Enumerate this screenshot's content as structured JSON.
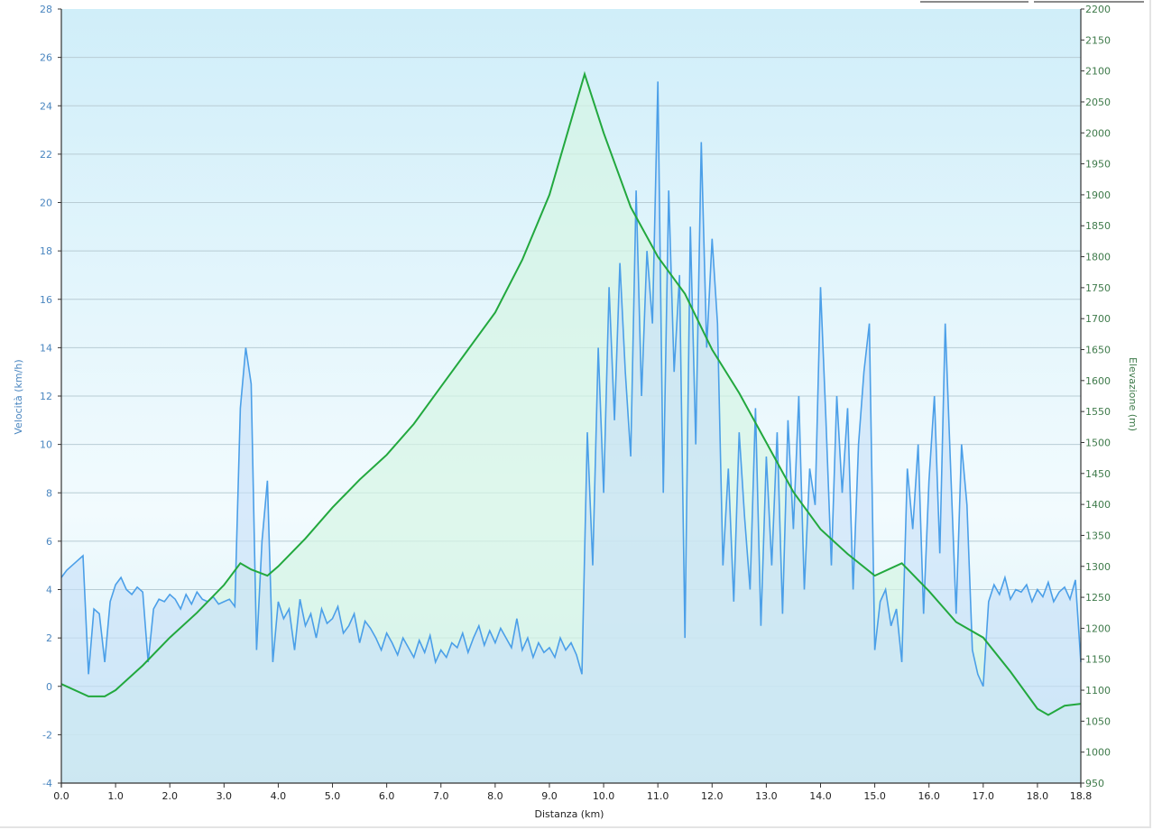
{
  "chart_data": {
    "type": "line",
    "title": "",
    "xlabel": "Distanza  (km)",
    "ylabel_left": "Velocità (km/h)",
    "ylabel_right": "Elevazione (m)",
    "xlim": [
      0,
      18.8
    ],
    "ylim_left": [
      -4,
      28
    ],
    "ylim_right": [
      950,
      2200
    ],
    "x_ticks": [
      "0.0",
      "1.0",
      "2.0",
      "3.0",
      "4.0",
      "5.0",
      "6.0",
      "7.0",
      "8.0",
      "9.0",
      "10.0",
      "11.0",
      "12.0",
      "13.0",
      "14.0",
      "15.0",
      "16.0",
      "17.0",
      "18.0",
      "18.8"
    ],
    "y_left_ticks": [
      -4,
      -2,
      0,
      2,
      4,
      6,
      8,
      10,
      12,
      14,
      16,
      18,
      20,
      22,
      24,
      26,
      28
    ],
    "y_right_ticks": [
      950,
      1000,
      1050,
      1100,
      1150,
      1200,
      1250,
      1300,
      1350,
      1400,
      1450,
      1500,
      1550,
      1600,
      1650,
      1700,
      1750,
      1800,
      1850,
      1900,
      1950,
      2000,
      2050,
      2100,
      2150,
      2200
    ],
    "grid": "horizontal",
    "colors": {
      "speed": "#4b9fe8",
      "speed_fill": "#cfe6fa",
      "elevation": "#22a83e",
      "elevation_fill": "#d6f5e4",
      "left_axis_text": "#4a86c0",
      "right_axis_text": "#3e7a4a"
    },
    "series": [
      {
        "name": "Velocità",
        "axis": "left",
        "x_step_km": 0.1,
        "values": [
          4.5,
          4.8,
          5.0,
          5.2,
          5.4,
          0.5,
          3.2,
          3.0,
          1.0,
          3.5,
          4.2,
          4.5,
          4.0,
          3.8,
          4.1,
          3.9,
          1.0,
          3.2,
          3.6,
          3.5,
          3.8,
          3.6,
          3.2,
          3.8,
          3.4,
          3.9,
          3.6,
          3.5,
          3.7,
          3.4,
          3.5,
          3.6,
          3.3,
          11.5,
          14.0,
          12.5,
          1.5,
          6.0,
          8.5,
          1.0,
          3.5,
          2.8,
          3.2,
          1.5,
          3.6,
          2.5,
          3.0,
          2.0,
          3.2,
          2.6,
          2.8,
          3.3,
          2.2,
          2.5,
          3.0,
          1.8,
          2.7,
          2.4,
          2.0,
          1.5,
          2.2,
          1.8,
          1.3,
          2.0,
          1.6,
          1.2,
          1.9,
          1.4,
          2.1,
          1.0,
          1.5,
          1.2,
          1.8,
          1.6,
          2.2,
          1.4,
          2.0,
          2.5,
          1.7,
          2.3,
          1.8,
          2.4,
          2.0,
          1.6,
          2.8,
          1.5,
          2.0,
          1.2,
          1.8,
          1.4,
          1.6,
          1.2,
          2.0,
          1.5,
          1.8,
          1.3,
          0.5,
          10.5,
          5.0,
          14.0,
          8.0,
          16.5,
          11.0,
          17.5,
          13.0,
          9.5,
          20.5,
          12.0,
          18.0,
          15.0,
          25.0,
          8.0,
          20.5,
          13.0,
          17.0,
          2.0,
          19.0,
          10.0,
          22.5,
          14.0,
          18.5,
          15.0,
          5.0,
          9.0,
          3.5,
          10.5,
          7.0,
          4.0,
          11.5,
          2.5,
          9.5,
          5.0,
          10.5,
          3.0,
          11.0,
          6.5,
          12.0,
          4.0,
          9.0,
          7.5,
          16.5,
          11.0,
          5.0,
          12.0,
          8.0,
          11.5,
          4.0,
          10.0,
          13.0,
          15.0,
          1.5,
          3.5,
          4.0,
          2.5,
          3.2,
          1.0,
          9.0,
          6.5,
          10.0,
          3.0,
          8.5,
          12.0,
          5.5,
          15.0,
          9.0,
          3.0,
          10.0,
          7.5,
          1.5,
          0.5,
          0.0,
          3.5,
          4.2,
          3.8,
          4.5,
          3.6,
          4.0,
          3.9,
          4.2,
          3.5,
          4.0,
          3.7,
          4.3,
          3.5,
          3.9,
          4.1,
          3.6,
          4.4,
          1.0
        ]
      },
      {
        "name": "Elevazione",
        "axis": "right",
        "x": [
          0,
          0.5,
          0.8,
          1.0,
          1.5,
          2.0,
          2.5,
          3.0,
          3.3,
          3.5,
          3.8,
          4.0,
          4.5,
          5.0,
          5.5,
          6.0,
          6.5,
          7.0,
          7.5,
          8.0,
          8.5,
          9.0,
          9.5,
          9.65,
          10.0,
          10.5,
          11.0,
          11.5,
          12.0,
          12.5,
          13.0,
          13.5,
          14.0,
          14.5,
          15.0,
          15.5,
          16.0,
          16.5,
          17.0,
          17.5,
          18.0,
          18.2,
          18.5,
          18.8
        ],
        "values": [
          1110,
          1090,
          1090,
          1100,
          1140,
          1185,
          1225,
          1270,
          1305,
          1295,
          1285,
          1300,
          1345,
          1395,
          1440,
          1480,
          1530,
          1590,
          1650,
          1710,
          1795,
          1900,
          2050,
          2095,
          2000,
          1880,
          1800,
          1740,
          1650,
          1580,
          1500,
          1420,
          1360,
          1320,
          1285,
          1305,
          1260,
          1210,
          1185,
          1130,
          1070,
          1060,
          1075,
          1078
        ]
      }
    ]
  }
}
